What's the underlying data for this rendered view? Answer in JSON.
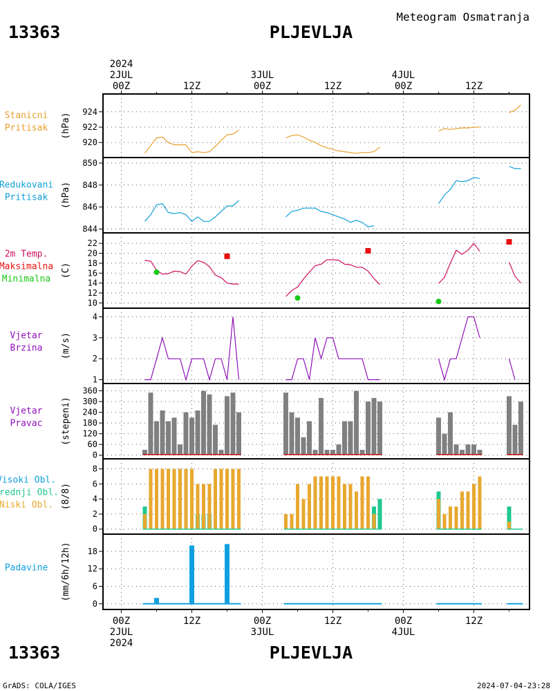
{
  "header": {
    "station_id": "13363",
    "station_name": "PLJEVLJA",
    "title": "Meteogram Osmatranja"
  },
  "footer": {
    "credit": "GrADS: COLA/IGES",
    "timestamp": "2024-07-04-23:28"
  },
  "time_axis": {
    "top": [
      {
        "hour": 0,
        "lines": [
          "2024",
          "2JUL",
          "00Z"
        ]
      },
      {
        "hour": 12,
        "lines": [
          "12Z"
        ]
      },
      {
        "hour": 24,
        "lines": [
          "3JUL",
          "00Z"
        ]
      },
      {
        "hour": 36,
        "lines": [
          "12Z"
        ]
      },
      {
        "hour": 48,
        "lines": [
          "4JUL",
          "00Z"
        ]
      },
      {
        "hour": 60,
        "lines": [
          "12Z"
        ]
      }
    ],
    "bottom": [
      {
        "hour": 0,
        "lines": [
          "00Z",
          "2JUL",
          "2024"
        ]
      },
      {
        "hour": 12,
        "lines": [
          "12Z"
        ]
      },
      {
        "hour": 24,
        "lines": [
          "00Z",
          "3JUL"
        ]
      },
      {
        "hour": 36,
        "lines": [
          "12Z"
        ]
      },
      {
        "hour": 48,
        "lines": [
          "00Z",
          "4JUL"
        ]
      },
      {
        "hour": 60,
        "lines": [
          "12Z"
        ]
      }
    ]
  },
  "colors": {
    "station_pressure": "#e8a030",
    "reduced_pressure": "#10a0d8",
    "temp": "#d01060",
    "tmax": "#e81010",
    "tmin": "#18c818",
    "wind": "#9010b8",
    "wind_dir_bar": "#808080",
    "cloud_low": "#e8a830",
    "cloud_mid": "#20c890",
    "precip": "#10a0e0"
  },
  "chart_data": [
    {
      "type": "line",
      "key": "stanicni",
      "labels": [
        "Stanicni",
        "Pritisak"
      ],
      "unit": "(hPa)",
      "ylim": [
        918.4,
        925.6
      ],
      "yticks": [
        920,
        922,
        924
      ],
      "segments": [
        [
          [
            4,
            918.6
          ],
          [
            5,
            919.6
          ],
          [
            6,
            920.6
          ],
          [
            7,
            920.7
          ],
          [
            8,
            920.0
          ],
          [
            9,
            919.7
          ],
          [
            10,
            919.7
          ],
          [
            11,
            919.7
          ],
          [
            12,
            918.7
          ],
          [
            13,
            918.8
          ],
          [
            14,
            918.7
          ],
          [
            15,
            918.8
          ],
          [
            16,
            919.5
          ],
          [
            17,
            920.3
          ],
          [
            18,
            921.0
          ],
          [
            19,
            921.1
          ],
          [
            20,
            921.6
          ]
        ],
        [
          [
            28,
            920.6
          ],
          [
            29,
            920.9
          ],
          [
            30,
            921.0
          ],
          [
            31,
            920.7
          ],
          [
            32,
            920.3
          ],
          [
            33,
            920.0
          ],
          [
            34,
            919.6
          ],
          [
            35,
            919.3
          ],
          [
            36,
            919.1
          ],
          [
            37,
            918.9
          ],
          [
            38,
            918.8
          ],
          [
            39,
            918.7
          ],
          [
            40,
            918.6
          ],
          [
            41,
            918.7
          ],
          [
            42,
            918.7
          ],
          [
            43,
            918.8
          ],
          [
            44,
            919.4
          ]
        ],
        [
          [
            54,
            921.5
          ],
          [
            55,
            921.8
          ],
          [
            56,
            921.7
          ],
          [
            57,
            921.8
          ],
          [
            58,
            921.9
          ],
          [
            59,
            921.9
          ],
          [
            60,
            922.0
          ],
          [
            61,
            922.0
          ]
        ],
        [
          [
            66,
            923.9
          ],
          [
            67,
            924.2
          ],
          [
            68,
            924.9
          ]
        ]
      ]
    },
    {
      "type": "line",
      "key": "redukovani",
      "labels": [
        "Redukovani",
        "Pritisak"
      ],
      "unit": "(hPa)",
      "ylim": [
        843.9,
        850.0
      ],
      "yticks": [
        844,
        846,
        848,
        850
      ],
      "ytick_labels": [
        "844",
        "846",
        "848",
        "850"
      ],
      "segments": [
        [
          [
            4,
            844.7
          ],
          [
            5,
            845.3
          ],
          [
            6,
            846.2
          ],
          [
            7,
            846.3
          ],
          [
            8,
            845.5
          ],
          [
            9,
            845.4
          ],
          [
            10,
            845.5
          ],
          [
            11,
            845.3
          ],
          [
            12,
            844.7
          ],
          [
            13,
            845.1
          ],
          [
            14,
            844.7
          ],
          [
            15,
            844.7
          ],
          [
            16,
            845.1
          ],
          [
            17,
            845.6
          ],
          [
            18,
            846.1
          ],
          [
            19,
            846.1
          ],
          [
            20,
            846.6
          ]
        ],
        [
          [
            28,
            845.1
          ],
          [
            29,
            845.6
          ],
          [
            30,
            845.7
          ],
          [
            31,
            845.9
          ],
          [
            32,
            845.9
          ],
          [
            33,
            845.9
          ],
          [
            34,
            845.6
          ],
          [
            35,
            845.5
          ],
          [
            36,
            845.3
          ],
          [
            37,
            845.1
          ],
          [
            38,
            844.9
          ],
          [
            39,
            844.6
          ],
          [
            40,
            844.8
          ],
          [
            41,
            844.6
          ],
          [
            42,
            844.2
          ],
          [
            43,
            844.3
          ]
        ],
        [
          [
            54,
            846.3
          ],
          [
            55,
            847.1
          ],
          [
            56,
            847.6
          ],
          [
            57,
            848.4
          ],
          [
            58,
            848.3
          ],
          [
            59,
            848.4
          ],
          [
            60,
            848.7
          ],
          [
            61,
            848.6
          ]
        ],
        [
          [
            66,
            849.7
          ],
          [
            67,
            849.5
          ],
          [
            68,
            849.5
          ]
        ]
      ]
    },
    {
      "type": "line",
      "key": "temperatura",
      "labels": [
        "2m Temp.",
        "Maksimalna",
        "Minimalna"
      ],
      "unit": "(C)",
      "ylim": [
        9.5,
        23
      ],
      "yticks": [
        10,
        12,
        14,
        16,
        18,
        20,
        22
      ],
      "segments": [
        [
          [
            4,
            18.6
          ],
          [
            5,
            18.4
          ],
          [
            6,
            16.6
          ],
          [
            7,
            15.8
          ],
          [
            8,
            15.9
          ],
          [
            9,
            16.4
          ],
          [
            10,
            16.3
          ],
          [
            11,
            15.8
          ],
          [
            12,
            17.4
          ],
          [
            13,
            18.5
          ],
          [
            14,
            18.2
          ],
          [
            15,
            17.3
          ],
          [
            16,
            15.6
          ],
          [
            17,
            15.1
          ],
          [
            18,
            14.0
          ],
          [
            19,
            13.8
          ],
          [
            20,
            13.8
          ]
        ],
        [
          [
            28,
            11.3
          ],
          [
            29,
            12.5
          ],
          [
            30,
            13.2
          ],
          [
            31,
            14.8
          ],
          [
            32,
            16.2
          ],
          [
            33,
            17.5
          ],
          [
            34,
            17.8
          ],
          [
            35,
            18.7
          ],
          [
            36,
            18.7
          ],
          [
            37,
            18.6
          ],
          [
            38,
            17.8
          ],
          [
            39,
            17.7
          ],
          [
            40,
            17.2
          ],
          [
            41,
            17.2
          ],
          [
            42,
            16.4
          ],
          [
            43,
            14.9
          ],
          [
            44,
            13.7
          ]
        ],
        [
          [
            54,
            13.9
          ],
          [
            55,
            15.2
          ],
          [
            56,
            18.0
          ],
          [
            57,
            20.6
          ],
          [
            58,
            19.8
          ],
          [
            59,
            20.6
          ],
          [
            60,
            22.0
          ],
          [
            61,
            20.4
          ]
        ],
        [
          [
            66,
            18.2
          ],
          [
            67,
            15.4
          ],
          [
            68,
            14.0
          ]
        ]
      ],
      "tmax_points": [
        [
          18,
          19.4
        ],
        [
          42,
          20.5
        ],
        [
          66,
          22.3
        ]
      ],
      "tmin_points": [
        [
          6,
          16.2
        ],
        [
          30,
          11.0
        ],
        [
          54,
          10.3
        ]
      ]
    },
    {
      "type": "line",
      "key": "vjetar_brzina",
      "labels": [
        "Vjetar",
        "Brzina"
      ],
      "unit": "(m/s)",
      "ylim": [
        0.95,
        4.15
      ],
      "yticks": [
        1,
        2,
        3,
        4
      ],
      "segments": [
        [
          [
            4,
            1
          ],
          [
            5,
            1
          ],
          [
            6,
            2
          ],
          [
            7,
            3
          ],
          [
            8,
            2
          ],
          [
            9,
            2
          ],
          [
            10,
            2
          ],
          [
            11,
            1
          ],
          [
            12,
            2
          ],
          [
            13,
            2
          ],
          [
            14,
            2
          ],
          [
            15,
            1
          ],
          [
            16,
            2
          ],
          [
            17,
            2
          ],
          [
            18,
            1
          ],
          [
            19,
            4
          ],
          [
            20,
            1
          ]
        ],
        [
          [
            28,
            1
          ],
          [
            29,
            1
          ],
          [
            30,
            2
          ],
          [
            31,
            2
          ],
          [
            32,
            1
          ],
          [
            33,
            3
          ],
          [
            34,
            2
          ],
          [
            35,
            3
          ],
          [
            36,
            3
          ],
          [
            37,
            2
          ],
          [
            38,
            2
          ],
          [
            39,
            2
          ],
          [
            40,
            2
          ],
          [
            41,
            2
          ],
          [
            42,
            1
          ],
          [
            43,
            1
          ],
          [
            44,
            1
          ]
        ],
        [
          [
            54,
            2
          ],
          [
            55,
            1
          ],
          [
            56,
            2
          ],
          [
            57,
            2
          ],
          [
            58,
            3
          ],
          [
            59,
            4
          ],
          [
            60,
            4
          ],
          [
            61,
            3
          ]
        ],
        [
          [
            66,
            2
          ],
          [
            67,
            1
          ]
        ]
      ]
    },
    {
      "type": "bar",
      "key": "vjetar_pravac",
      "labels": [
        "Vjetar",
        "Pravac"
      ],
      "unit": "(stepeni)",
      "ylim": [
        -5,
        370
      ],
      "yticks": [
        0,
        60,
        120,
        180,
        240,
        300,
        360
      ],
      "x": [
        4,
        5,
        6,
        7,
        8,
        9,
        10,
        11,
        12,
        13,
        14,
        15,
        16,
        17,
        18,
        19,
        20,
        28,
        29,
        30,
        31,
        32,
        33,
        34,
        35,
        36,
        37,
        38,
        39,
        40,
        41,
        42,
        43,
        44,
        54,
        55,
        56,
        57,
        58,
        59,
        60,
        61,
        66,
        67,
        68
      ],
      "values": [
        30,
        350,
        190,
        250,
        190,
        210,
        60,
        240,
        210,
        250,
        360,
        340,
        170,
        30,
        330,
        350,
        240,
        350,
        240,
        210,
        100,
        190,
        30,
        320,
        30,
        30,
        60,
        190,
        190,
        360,
        30,
        300,
        320,
        300,
        210,
        120,
        240,
        60,
        30,
        60,
        60,
        30,
        330,
        170,
        300
      ]
    },
    {
      "type": "bar",
      "key": "oblacnost",
      "labels": [
        "Visoki Obl.",
        "Srednji Obl.",
        "Niski Obl."
      ],
      "unit": "(8/8)",
      "ylim": [
        -0.3,
        8.6
      ],
      "yticks": [
        0,
        2,
        4,
        6,
        8
      ],
      "x": [
        4,
        5,
        6,
        7,
        8,
        9,
        10,
        11,
        12,
        13,
        14,
        15,
        16,
        17,
        18,
        19,
        20,
        28,
        29,
        30,
        31,
        32,
        33,
        34,
        35,
        36,
        37,
        38,
        39,
        40,
        41,
        42,
        43,
        44,
        54,
        55,
        56,
        57,
        58,
        59,
        60,
        61,
        66,
        67,
        68
      ],
      "series": [
        {
          "name": "Srednji Obl.",
          "values": [
            3,
            0,
            0,
            0,
            0,
            0,
            0,
            0,
            0,
            2,
            2,
            2,
            0,
            0,
            0,
            0,
            0,
            0,
            0,
            0,
            0,
            0,
            0,
            0,
            0,
            0,
            0,
            0,
            0,
            0,
            0,
            0,
            3,
            4,
            5,
            0,
            0,
            0,
            0,
            0,
            0,
            0,
            3,
            0,
            0
          ]
        },
        {
          "name": "Niski Obl.",
          "values": [
            2,
            8,
            8,
            8,
            8,
            8,
            8,
            8,
            8,
            6,
            6,
            6,
            8,
            8,
            8,
            8,
            8,
            2,
            2,
            6,
            4,
            6,
            7,
            7,
            7,
            7,
            7,
            6,
            6,
            5,
            7,
            7,
            2,
            0,
            4,
            2,
            3,
            3,
            5,
            5,
            6,
            7,
            1,
            0,
            0
          ]
        }
      ]
    },
    {
      "type": "bar",
      "key": "padavine",
      "labels": [
        "Padavine"
      ],
      "unit": "(mm/6h/12h)",
      "ylim": [
        -1,
        22
      ],
      "yticks": [
        0,
        6,
        12,
        18
      ],
      "x": [
        4,
        5,
        6,
        7,
        8,
        9,
        10,
        11,
        12,
        13,
        14,
        15,
        16,
        17,
        18,
        19,
        20,
        28,
        29,
        30,
        31,
        32,
        33,
        34,
        35,
        36,
        37,
        38,
        39,
        40,
        41,
        42,
        43,
        44,
        54,
        55,
        56,
        57,
        58,
        59,
        60,
        61,
        66,
        67,
        68
      ],
      "values": [
        0,
        0,
        2,
        0,
        0,
        0,
        0,
        0,
        20,
        0,
        0,
        0,
        0,
        0,
        20.5,
        0,
        0,
        0,
        0,
        0,
        0,
        0,
        0,
        0,
        0,
        0,
        0,
        0,
        0,
        0,
        0,
        0,
        0,
        0,
        0,
        0,
        0,
        0,
        0,
        0,
        0,
        0,
        0,
        0,
        0
      ]
    }
  ]
}
